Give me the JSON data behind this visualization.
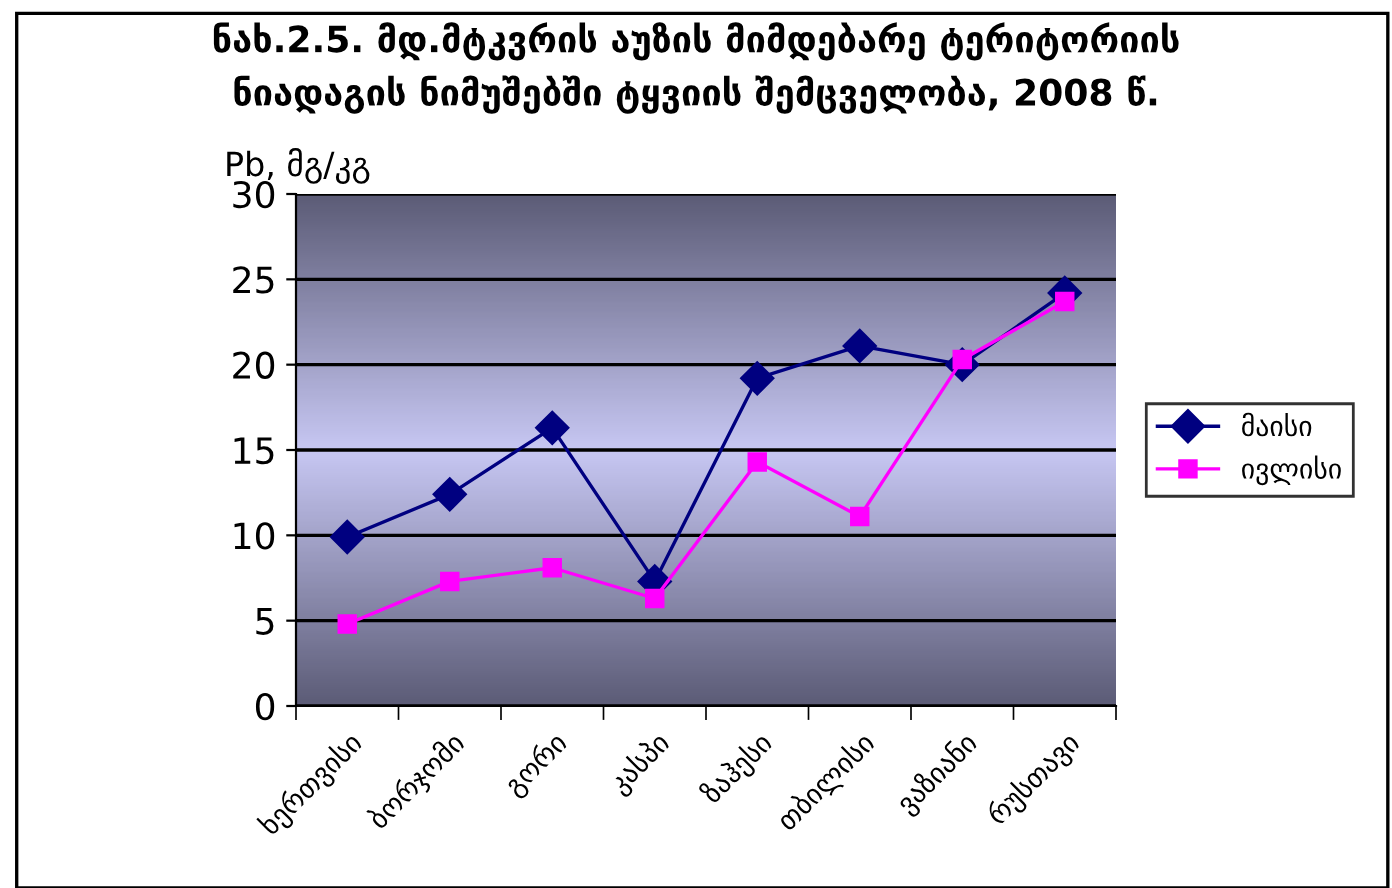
{
  "chart_data": {
    "type": "line",
    "title": "ნახ.2.5. მდ.მტკვრის აუზის მიმდებარე ტერიტორიის\nნიადაგის ნიმუშებში ტყვიის შემცველობა, 2008 წ.",
    "ylabel": "Pb, მგ/კგ",
    "categories": [
      "ხერთვისი",
      "ბორჯომი",
      "გორი",
      "კასპი",
      "ზაჰესი",
      "თბილისი",
      "ვაზიანი",
      "რუსთავი"
    ],
    "series": [
      {
        "name": "მაისი",
        "color": "#000080",
        "marker": "diamond",
        "values": [
          9.9,
          12.4,
          16.3,
          7.3,
          19.2,
          21.1,
          20.0,
          24.2
        ]
      },
      {
        "name": "ივლისი",
        "color": "#ff00ff",
        "marker": "square",
        "values": [
          4.8,
          7.3,
          8.1,
          6.3,
          14.3,
          11.1,
          20.3,
          23.7
        ]
      }
    ],
    "ylim": [
      0,
      30
    ],
    "yticks": [
      0,
      5,
      10,
      15,
      20,
      25,
      30
    ],
    "grid": "y",
    "legend": "right",
    "line_style": "solid"
  }
}
